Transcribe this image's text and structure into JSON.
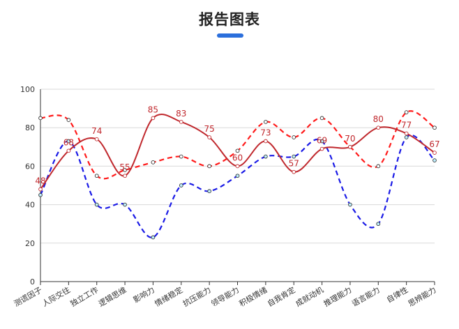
{
  "page": {
    "title": "报告图表",
    "accent_color": "#2b6fdc"
  },
  "chart_data": {
    "type": "line",
    "categories": [
      "测谎因子",
      "人际交往",
      "独立工作",
      "逻辑思维",
      "影响力",
      "情绪稳定",
      "抗压能力",
      "领导能力",
      "积极情绪",
      "自我肯定",
      "成就动机",
      "推理能力",
      "语言能力",
      "自律性",
      "思辨能力"
    ],
    "ylim": [
      0,
      100
    ],
    "yticks": [
      0,
      20,
      40,
      60,
      80,
      100
    ],
    "grid": true,
    "series": [
      {
        "style": "solid",
        "color": "#c0282d",
        "values": [
          48,
          68,
          74,
          55,
          85,
          83,
          75,
          60,
          73,
          57,
          69,
          70,
          80,
          77,
          67
        ],
        "labels_shown": true
      },
      {
        "style": "dashed",
        "color": "#ff1a1a",
        "values": [
          85,
          84,
          55,
          58,
          62,
          65,
          60,
          68,
          83,
          75,
          85,
          70,
          60,
          88,
          80
        ],
        "labels_shown": false
      },
      {
        "style": "dashed",
        "color": "#1a1ae6",
        "values": [
          45,
          73,
          40,
          40,
          23,
          50,
          47,
          55,
          65,
          65,
          73,
          40,
          30,
          75,
          63
        ],
        "labels_shown": false
      }
    ]
  }
}
